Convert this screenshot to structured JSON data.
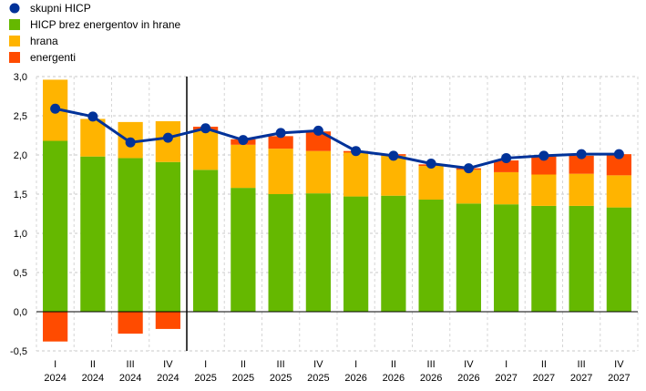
{
  "chart_data": {
    "type": "bar",
    "stacked": true,
    "categories": [
      {
        "quarter": "I",
        "year": "2024"
      },
      {
        "quarter": "II",
        "year": "2024"
      },
      {
        "quarter": "III",
        "year": "2024"
      },
      {
        "quarter": "IV",
        "year": "2024"
      },
      {
        "quarter": "I",
        "year": "2025"
      },
      {
        "quarter": "II",
        "year": "2025"
      },
      {
        "quarter": "III",
        "year": "2025"
      },
      {
        "quarter": "IV",
        "year": "2025"
      },
      {
        "quarter": "I",
        "year": "2026"
      },
      {
        "quarter": "II",
        "year": "2026"
      },
      {
        "quarter": "III",
        "year": "2026"
      },
      {
        "quarter": "IV",
        "year": "2026"
      },
      {
        "quarter": "I",
        "year": "2027"
      },
      {
        "quarter": "II",
        "year": "2027"
      },
      {
        "quarter": "III",
        "year": "2027"
      },
      {
        "quarter": "IV",
        "year": "2027"
      }
    ],
    "series": [
      {
        "name": "HICP brez energentov in hrane",
        "color": "#65b800",
        "values": [
          2.18,
          1.98,
          1.96,
          1.91,
          1.81,
          1.58,
          1.5,
          1.51,
          1.47,
          1.48,
          1.43,
          1.38,
          1.37,
          1.35,
          1.35,
          1.33
        ]
      },
      {
        "name": "hrana",
        "color": "#ffb400",
        "values": [
          0.78,
          0.48,
          0.46,
          0.52,
          0.5,
          0.55,
          0.58,
          0.54,
          0.56,
          0.51,
          0.43,
          0.43,
          0.41,
          0.4,
          0.41,
          0.41
        ]
      },
      {
        "name": "energenti",
        "color": "#ff4b00",
        "values": [
          -0.38,
          0.0,
          -0.28,
          -0.22,
          0.05,
          0.07,
          0.16,
          0.25,
          0.02,
          0.02,
          0.02,
          0.02,
          0.15,
          0.23,
          0.23,
          0.27
        ]
      }
    ],
    "line": {
      "name": "skupni HICP",
      "color": "#003299",
      "values": [
        2.59,
        2.49,
        2.16,
        2.22,
        2.34,
        2.19,
        2.28,
        2.31,
        2.05,
        1.99,
        1.89,
        1.83,
        1.96,
        1.99,
        2.01,
        2.01
      ]
    },
    "legend_order": [
      "skupni HICP",
      "HICP brez energentov in hrane",
      "hrana",
      "energenti"
    ],
    "legend_placement": "top-left",
    "yticks": [
      "3,0",
      "2,5",
      "2,0",
      "1,5",
      "1,0",
      "0,5",
      "0,0",
      "-0,5"
    ],
    "ytick_values": [
      3.0,
      2.5,
      2.0,
      1.5,
      1.0,
      0.5,
      0.0,
      -0.5
    ],
    "ylim": [
      -0.5,
      3.0
    ],
    "grid": true,
    "divider_after_category_index": 3
  }
}
